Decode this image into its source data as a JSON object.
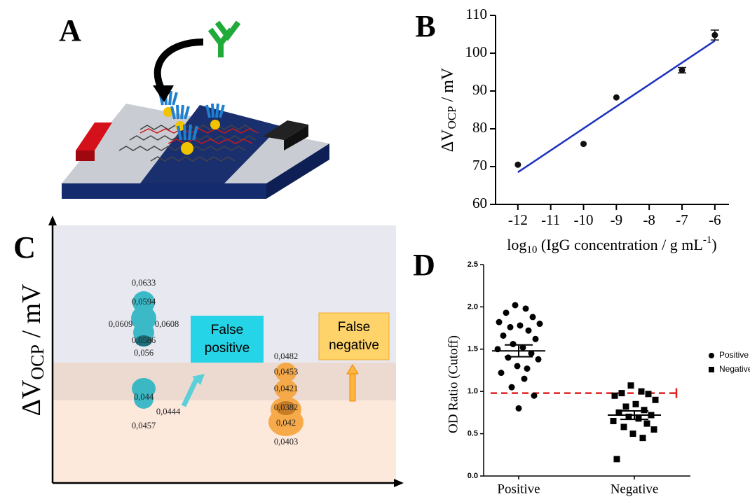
{
  "panel_labels": {
    "a": "A",
    "b": "B",
    "c": "C",
    "d": "D"
  },
  "diagram_c": {
    "ylabel": {
      "main": "ΔV",
      "sub": "OCP",
      "rest": " / mV"
    },
    "false_positive": "False positive",
    "false_negative": "False negative",
    "annotations": [
      "0,0633",
      "0,0594",
      "0,0609",
      "0,0608",
      "0,0586",
      "0,056",
      "0,044",
      "0,0444",
      "0,0457",
      "0,0482",
      "0,0453",
      "0,0421",
      "0,0382",
      "0,042",
      "0,0403"
    ]
  },
  "chart_data": [
    {
      "type": "scatter",
      "xlabel": {
        "parts": [
          "log",
          "10",
          " (IgG concentration / g mL",
          "-1",
          ")"
        ]
      },
      "ylabel": {
        "main": "ΔV",
        "sub": "OCP",
        "rest": " / mV"
      },
      "x": [
        -12,
        -10,
        -9,
        -7,
        -6
      ],
      "series": [
        {
          "values": [
            70.5,
            76,
            88.3,
            95.5,
            104.8
          ],
          "errors": [
            null,
            null,
            null,
            0.7,
            1.3
          ],
          "color": "#111111"
        }
      ],
      "fit": {
        "x": [
          -12,
          -6
        ],
        "values": [
          68.5,
          103.3
        ],
        "color": "#1a2fbf"
      },
      "xlim": [
        -12.68,
        -5.57
      ],
      "ylim": [
        60,
        110
      ],
      "xticks": [
        -12,
        -11,
        -10,
        -9,
        -8,
        -7,
        -6
      ],
      "yticks": [
        60,
        70,
        80,
        90,
        100,
        110
      ]
    },
    {
      "type": "strip",
      "ylabel": "OD Ratio (Cutoff)",
      "categories": [
        "Positive",
        "Negative"
      ],
      "series": [
        {
          "name": "Positive",
          "marker": "circle",
          "values": [
            2.02,
            1.98,
            1.93,
            1.88,
            1.82,
            1.8,
            1.78,
            1.76,
            1.72,
            1.66,
            1.62,
            1.56,
            1.52,
            1.5,
            1.45,
            1.4,
            1.38,
            1.3,
            1.27,
            1.22,
            1.15,
            1.05,
            0.95,
            0.8
          ],
          "mean": 1.48,
          "sem": 0.07
        },
        {
          "name": "Negative",
          "marker": "square",
          "values": [
            1.07,
            1.0,
            0.98,
            0.97,
            0.95,
            0.9,
            0.85,
            0.82,
            0.78,
            0.75,
            0.72,
            0.7,
            0.68,
            0.65,
            0.62,
            0.58,
            0.55,
            0.5,
            0.45,
            0.2
          ],
          "mean": 0.72,
          "sem": 0.05
        }
      ],
      "cutoff": 0.98,
      "cutoff_color": "#e02020",
      "ylim": [
        0,
        2.5
      ],
      "yticks": [
        {
          "value": 0,
          "label": "0.0"
        },
        0.5,
        {
          "value": 1,
          "label": "1.0"
        },
        1.5,
        {
          "value": 2,
          "label": "2.0"
        },
        2.5
      ]
    }
  ]
}
